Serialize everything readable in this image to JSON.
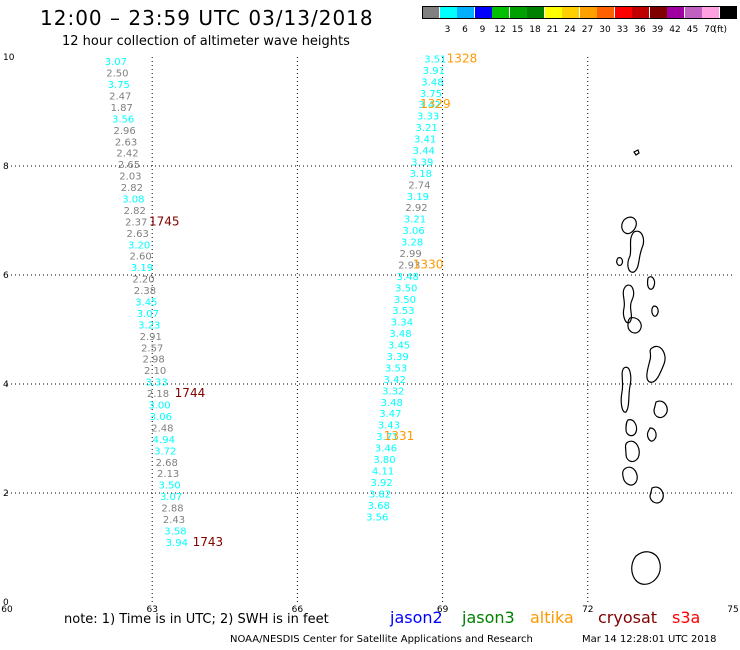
{
  "header": {
    "title": "12:00 – 23:59 UTC 03/13/2018",
    "subtitle": "12 hour collection of altimeter wave heights"
  },
  "legend": {
    "colors": [
      "#808080",
      "#00ffff",
      "#00b0ff",
      "#0000ff",
      "#00c000",
      "#00a000",
      "#008000",
      "#ffff00",
      "#ffd000",
      "#ffa000",
      "#ff6000",
      "#ff0000",
      "#c00000",
      "#800000",
      "#a000a0",
      "#c060c0",
      "#ffa0e0",
      "#000000"
    ],
    "labels": [
      "3",
      "6",
      "9",
      "12",
      "15",
      "18",
      "21",
      "24",
      "27",
      "30",
      "33",
      "36",
      "39",
      "42",
      "45",
      "70"
    ],
    "unit": "(ft)"
  },
  "axes": {
    "x_ticks": [
      "60",
      "63",
      "66",
      "69",
      "72",
      "75"
    ],
    "y_ticks": [
      "0",
      "2",
      "4",
      "6",
      "8",
      "10"
    ],
    "xlim": [
      60,
      75
    ],
    "ylim": [
      0,
      10
    ]
  },
  "colors": {
    "swh_low": "#808080",
    "swh_mid": "#00ffff",
    "jason2": "#0000ff",
    "jason3": "#008000",
    "altika": "#ff9900",
    "cryosat": "#800000",
    "s3a": "#ff0000",
    "time_orange": "#ff9900",
    "time_dark": "#800000"
  },
  "map_data": {
    "track_left": [
      {
        "lon": 62.25,
        "lat": 9.85,
        "v": "3.07"
      },
      {
        "lon": 62.28,
        "lat": 9.64,
        "v": "2.50"
      },
      {
        "lon": 62.31,
        "lat": 9.43,
        "v": "3.75"
      },
      {
        "lon": 62.34,
        "lat": 9.22,
        "v": "2.47"
      },
      {
        "lon": 62.37,
        "lat": 9.01,
        "v": "1.87"
      },
      {
        "lon": 62.4,
        "lat": 8.8,
        "v": "3.56"
      },
      {
        "lon": 62.43,
        "lat": 8.59,
        "v": "2.96"
      },
      {
        "lon": 62.46,
        "lat": 8.38,
        "v": "2.63"
      },
      {
        "lon": 62.49,
        "lat": 8.17,
        "v": "2.42"
      },
      {
        "lon": 62.52,
        "lat": 7.96,
        "v": "2.65"
      },
      {
        "lon": 62.55,
        "lat": 7.75,
        "v": "2.03"
      },
      {
        "lon": 62.58,
        "lat": 7.54,
        "v": "2.82"
      },
      {
        "lon": 62.61,
        "lat": 7.33,
        "v": "3.08"
      },
      {
        "lon": 62.64,
        "lat": 7.12,
        "v": "2.82"
      },
      {
        "lon": 62.67,
        "lat": 6.91,
        "v": "2.37"
      },
      {
        "lon": 62.7,
        "lat": 6.7,
        "v": "2.63"
      },
      {
        "lon": 62.73,
        "lat": 6.49,
        "v": "3.20"
      },
      {
        "lon": 62.76,
        "lat": 6.28,
        "v": "2.60"
      },
      {
        "lon": 62.79,
        "lat": 6.07,
        "v": "3.19"
      },
      {
        "lon": 62.82,
        "lat": 5.86,
        "v": "2.20"
      },
      {
        "lon": 62.85,
        "lat": 5.65,
        "v": "2.38"
      },
      {
        "lon": 62.88,
        "lat": 5.44,
        "v": "3.45"
      },
      {
        "lon": 62.91,
        "lat": 5.23,
        "v": "3.07"
      },
      {
        "lon": 62.94,
        "lat": 5.02,
        "v": "3.23"
      },
      {
        "lon": 62.97,
        "lat": 4.81,
        "v": "2.91"
      },
      {
        "lon": 63.0,
        "lat": 4.6,
        "v": "2.57"
      },
      {
        "lon": 63.03,
        "lat": 4.39,
        "v": "2.98"
      },
      {
        "lon": 63.06,
        "lat": 4.18,
        "v": "2.10"
      },
      {
        "lon": 63.09,
        "lat": 3.97,
        "v": "3.33"
      },
      {
        "lon": 63.12,
        "lat": 3.76,
        "v": "2.18"
      },
      {
        "lon": 63.15,
        "lat": 3.55,
        "v": "3.00"
      },
      {
        "lon": 63.18,
        "lat": 3.34,
        "v": "3.06"
      },
      {
        "lon": 63.21,
        "lat": 3.13,
        "v": "2.48"
      },
      {
        "lon": 63.24,
        "lat": 2.92,
        "v": "4.94"
      },
      {
        "lon": 63.27,
        "lat": 2.71,
        "v": "3.72"
      },
      {
        "lon": 63.3,
        "lat": 2.5,
        "v": "2.68"
      },
      {
        "lon": 63.33,
        "lat": 2.29,
        "v": "2.13"
      },
      {
        "lon": 63.36,
        "lat": 2.08,
        "v": "3.50"
      },
      {
        "lon": 63.39,
        "lat": 1.87,
        "v": "3.07"
      },
      {
        "lon": 63.42,
        "lat": 1.66,
        "v": "2.88"
      },
      {
        "lon": 63.45,
        "lat": 1.45,
        "v": "2.43"
      },
      {
        "lon": 63.48,
        "lat": 1.24,
        "v": "3.58"
      },
      {
        "lon": 63.51,
        "lat": 1.03,
        "v": "3.94"
      }
    ],
    "track_right": [
      {
        "lon": 68.85,
        "lat": 9.9,
        "v": "3.51"
      },
      {
        "lon": 68.82,
        "lat": 9.69,
        "v": "3.91"
      },
      {
        "lon": 68.79,
        "lat": 9.48,
        "v": "3.48"
      },
      {
        "lon": 68.76,
        "lat": 9.27,
        "v": "3.75"
      },
      {
        "lon": 68.73,
        "lat": 9.06,
        "v": "3.42"
      },
      {
        "lon": 68.7,
        "lat": 8.85,
        "v": "3.33"
      },
      {
        "lon": 68.67,
        "lat": 8.64,
        "v": "3.21"
      },
      {
        "lon": 68.64,
        "lat": 8.43,
        "v": "3.41"
      },
      {
        "lon": 68.61,
        "lat": 8.22,
        "v": "3.44"
      },
      {
        "lon": 68.58,
        "lat": 8.01,
        "v": "3.39"
      },
      {
        "lon": 68.55,
        "lat": 7.8,
        "v": "3.18"
      },
      {
        "lon": 68.52,
        "lat": 7.59,
        "v": "2.74"
      },
      {
        "lon": 68.49,
        "lat": 7.38,
        "v": "3.19"
      },
      {
        "lon": 68.46,
        "lat": 7.17,
        "v": "2.92"
      },
      {
        "lon": 68.43,
        "lat": 6.96,
        "v": "3.21"
      },
      {
        "lon": 68.4,
        "lat": 6.75,
        "v": "3.06"
      },
      {
        "lon": 68.37,
        "lat": 6.54,
        "v": "3.28"
      },
      {
        "lon": 68.34,
        "lat": 6.33,
        "v": "2.99"
      },
      {
        "lon": 68.31,
        "lat": 6.12,
        "v": "2.93"
      },
      {
        "lon": 68.28,
        "lat": 5.91,
        "v": "3.48"
      },
      {
        "lon": 68.25,
        "lat": 5.7,
        "v": "3.50"
      },
      {
        "lon": 68.22,
        "lat": 5.49,
        "v": "3.50"
      },
      {
        "lon": 68.19,
        "lat": 5.28,
        "v": "3.53"
      },
      {
        "lon": 68.16,
        "lat": 5.07,
        "v": "3.34"
      },
      {
        "lon": 68.13,
        "lat": 4.86,
        "v": "3.48"
      },
      {
        "lon": 68.1,
        "lat": 4.65,
        "v": "3.45"
      },
      {
        "lon": 68.07,
        "lat": 4.44,
        "v": "3.39"
      },
      {
        "lon": 68.04,
        "lat": 4.23,
        "v": "3.53"
      },
      {
        "lon": 68.01,
        "lat": 4.02,
        "v": "3.42"
      },
      {
        "lon": 67.98,
        "lat": 3.81,
        "v": "3.32"
      },
      {
        "lon": 67.95,
        "lat": 3.6,
        "v": "3.48"
      },
      {
        "lon": 67.92,
        "lat": 3.39,
        "v": "3.47"
      },
      {
        "lon": 67.89,
        "lat": 3.18,
        "v": "3.43"
      },
      {
        "lon": 67.86,
        "lat": 2.97,
        "v": "3.71"
      },
      {
        "lon": 67.83,
        "lat": 2.76,
        "v": "3.46"
      },
      {
        "lon": 67.8,
        "lat": 2.55,
        "v": "3.80"
      },
      {
        "lon": 67.77,
        "lat": 2.34,
        "v": "4.11"
      },
      {
        "lon": 67.74,
        "lat": 2.13,
        "v": "3.92"
      },
      {
        "lon": 67.71,
        "lat": 1.92,
        "v": "3.82"
      },
      {
        "lon": 67.68,
        "lat": 1.71,
        "v": "3.68"
      },
      {
        "lon": 67.65,
        "lat": 1.5,
        "v": "3.56"
      }
    ],
    "times": [
      {
        "label": "1328",
        "lon": 69.4,
        "lat": 9.9,
        "kind": "orange"
      },
      {
        "label": "1329",
        "lon": 68.85,
        "lat": 9.06,
        "kind": "orange"
      },
      {
        "label": "1330",
        "lon": 68.7,
        "lat": 6.12,
        "kind": "orange"
      },
      {
        "label": "1331",
        "lon": 68.1,
        "lat": 2.97,
        "kind": "orange"
      },
      {
        "label": "1745",
        "lon": 63.25,
        "lat": 6.91,
        "kind": "dark"
      },
      {
        "label": "1744",
        "lon": 63.78,
        "lat": 3.76,
        "kind": "dark"
      },
      {
        "label": "1743",
        "lon": 64.15,
        "lat": 1.03,
        "kind": "dark"
      }
    ]
  },
  "note": "note: 1) Time is in UTC; 2) SWH is in feet",
  "satellites": [
    {
      "name": "jason2",
      "color": "#0000ff"
    },
    {
      "name": "jason3",
      "color": "#008000"
    },
    {
      "name": "altika",
      "color": "#ff9900"
    },
    {
      "name": "cryosat",
      "color": "#800000"
    },
    {
      "name": "s3a",
      "color": "#ff0000"
    }
  ],
  "footer": {
    "credit": "NOAA/NESDIS Center for Satellite Applications and Research",
    "timestamp": "Mar 14 12:28:01 UTC 2018"
  }
}
